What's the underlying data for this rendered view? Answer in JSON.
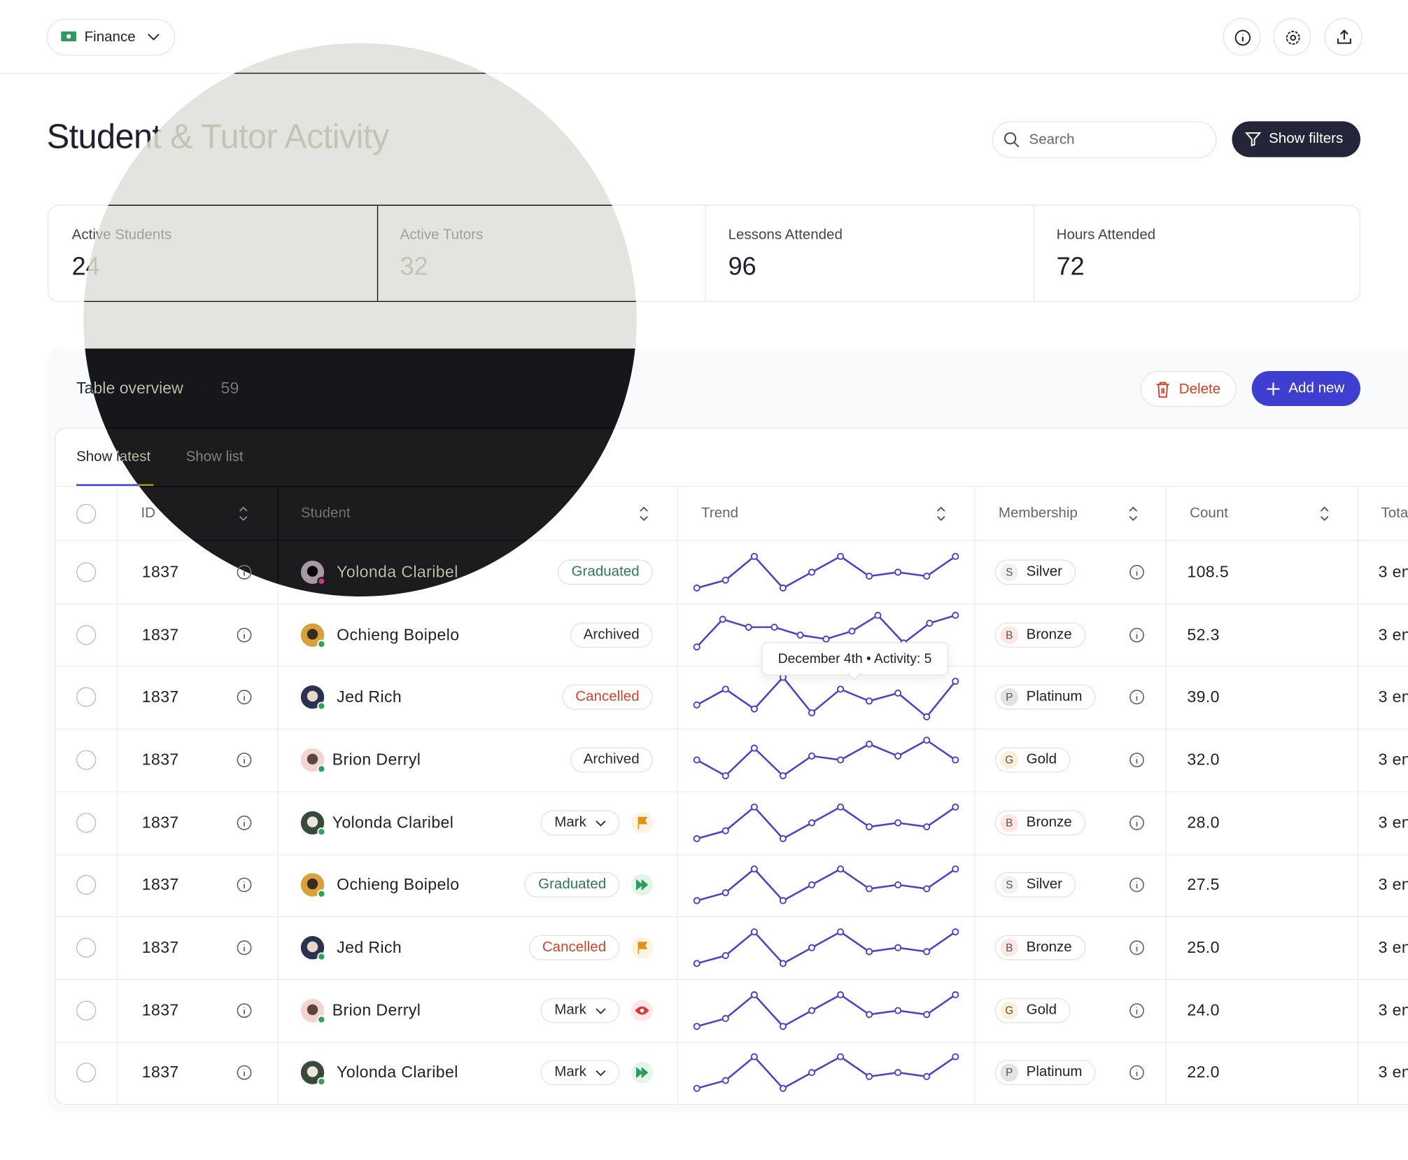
{
  "header": {
    "workspace": "Finance",
    "title": "Student & Tutor Activity",
    "search_placeholder": "Search",
    "filter_button": "Show filters"
  },
  "stats": [
    {
      "label": "Active Students",
      "value": 24
    },
    {
      "label": "Active Tutors",
      "value": 32
    },
    {
      "label": "Lessons Attended",
      "value": 96
    },
    {
      "label": "Hours Attended",
      "value": 72
    }
  ],
  "table": {
    "title": "Table overview",
    "total": 59,
    "delete_button": "Delete",
    "add_button": "Add new",
    "tabs": [
      "Show latest",
      "Show list"
    ],
    "columns": [
      "ID",
      "Student",
      "Trend",
      "Membership",
      "Count",
      "Total"
    ],
    "tooltip": "December 4th • Activity: 5",
    "rows": [
      {
        "id": 1837,
        "name": "Yolonda Claribel",
        "status": {
          "label": "Graduated",
          "color": "#2f7a4d"
        },
        "trend": [
          1,
          3,
          9,
          1,
          5,
          9,
          4,
          5,
          4,
          9
        ],
        "membership": "Silver",
        "initial": "S",
        "tier_color": "#f1f1f3",
        "count": "108.5",
        "total": "3 en"
      },
      {
        "id": 1837,
        "name": "Ochieng Boipelo",
        "status": {
          "label": "Archived",
          "color": "#2a2a33"
        },
        "trend": [
          2,
          9,
          7,
          7,
          5,
          4,
          6,
          10,
          3,
          8,
          10
        ],
        "membership": "Bronze",
        "initial": "B",
        "tier_color": "#fde6e4",
        "count": "52.3",
        "total": "3 en"
      },
      {
        "id": 1837,
        "name": "Jed Rich",
        "status": {
          "label": "Cancelled",
          "color": "#d0452a"
        },
        "trend": [
          3,
          7,
          2,
          10,
          1,
          7,
          4,
          6,
          0,
          9
        ],
        "membership": "Platinum",
        "initial": "P",
        "tier_color": "#e3e3e6",
        "count": "39.0",
        "total": "3 en"
      },
      {
        "id": 1837,
        "name": "Brion Derryl",
        "status": {
          "label": "Archived",
          "color": "#2a2a33"
        },
        "trend": [
          5,
          1,
          8,
          1,
          6,
          5,
          9,
          6,
          10,
          5
        ],
        "membership": "Gold",
        "initial": "G",
        "tier_color": "#fbefd6",
        "count": "32.0",
        "total": "3 en"
      },
      {
        "id": 1837,
        "name": "Yolonda Claribel",
        "status": {
          "label": "Mark",
          "color": "#2a2a33",
          "dropdown": true
        },
        "icon": {
          "kind": "flag",
          "color": "#e0911a",
          "bg": "#fdf3e1"
        },
        "trend": [
          1,
          3,
          9,
          1,
          5,
          9,
          4,
          5,
          4,
          9
        ],
        "membership": "Bronze",
        "initial": "B",
        "tier_color": "#fde6e4",
        "count": "28.0",
        "total": "3 en"
      },
      {
        "id": 1837,
        "name": "Ochieng Boipelo",
        "status": {
          "label": "Graduated",
          "color": "#2f7a4d"
        },
        "icon": {
          "kind": "forward",
          "color": "#2f9a5e",
          "bg": "#e4f4ea"
        },
        "trend": [
          1,
          3,
          9,
          1,
          5,
          9,
          4,
          5,
          4,
          9
        ],
        "membership": "Silver",
        "initial": "S",
        "tier_color": "#f1f1f3",
        "count": "27.5",
        "total": "3 en"
      },
      {
        "id": 1837,
        "name": "Jed Rich",
        "status": {
          "label": "Cancelled",
          "color": "#d0452a"
        },
        "icon": {
          "kind": "flag",
          "color": "#e0911a",
          "bg": "#fdf3e1"
        },
        "trend": [
          1,
          3,
          9,
          1,
          5,
          9,
          4,
          5,
          4,
          9
        ],
        "membership": "Bronze",
        "initial": "B",
        "tier_color": "#fde6e4",
        "count": "25.0",
        "total": "3 en"
      },
      {
        "id": 1837,
        "name": "Brion Derryl",
        "status": {
          "label": "Mark",
          "color": "#2a2a33",
          "dropdown": true
        },
        "icon": {
          "kind": "eye",
          "color": "#d93a3a",
          "bg": "#fde7e7"
        },
        "trend": [
          1,
          3,
          9,
          1,
          5,
          9,
          4,
          5,
          4,
          9
        ],
        "membership": "Gold",
        "initial": "G",
        "tier_color": "#fbefd6",
        "count": "24.0",
        "total": "3 en"
      },
      {
        "id": 1837,
        "name": "Yolonda Claribel",
        "status": {
          "label": "Mark",
          "color": "#2a2a33",
          "dropdown": true
        },
        "icon": {
          "kind": "forward",
          "color": "#2f9a5e",
          "bg": "#e4f4ea"
        },
        "trend": [
          1,
          3,
          9,
          1,
          5,
          9,
          4,
          5,
          4,
          9
        ],
        "membership": "Platinum",
        "initial": "P",
        "tier_color": "#e3e3e6",
        "count": "22.0",
        "total": "3 en"
      }
    ],
    "trend_color": "#4a44c8",
    "trend_range": [
      0,
      10
    ]
  }
}
